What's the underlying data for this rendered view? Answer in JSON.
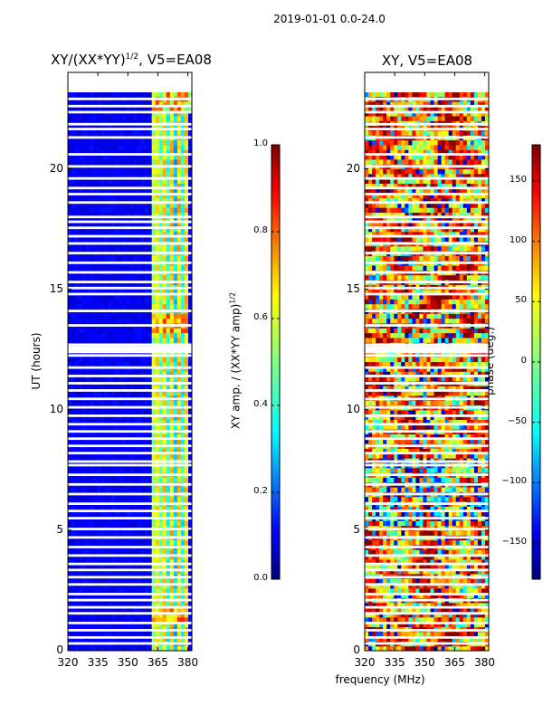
{
  "suptitle": "2019-01-01 0.0-24.0",
  "chart_data": [
    {
      "type": "heatmap",
      "title_main": "XY/(XX*YY)",
      "title_exp": "1/2",
      "title_tail": ", V5=EA08",
      "ylabel": "UT (hours)",
      "xlabel": "",
      "x_ticks": [
        "320",
        "335",
        "350",
        "365",
        "380"
      ],
      "x_tick_values": [
        320,
        335,
        350,
        365,
        380
      ],
      "y_ticks": [
        "0",
        "5",
        "10",
        "15",
        "20"
      ],
      "y_tick_values": [
        0,
        5,
        10,
        15,
        20
      ],
      "xlim": [
        320,
        382
      ],
      "ylim": [
        0,
        24
      ],
      "data_extent_hours": [
        0.0,
        23.2
      ],
      "colormap": "jet",
      "colorbar": {
        "label_main": "XY amp. / (XX*YY amp)",
        "label_exp": "1/2",
        "range": [
          0.0,
          1.0
        ],
        "ticks": [
          "0.0",
          "0.2",
          "0.4",
          "0.6",
          "0.8",
          "1.0"
        ],
        "tick_values": [
          0.0,
          0.2,
          0.4,
          0.6,
          0.8,
          1.0
        ]
      }
    },
    {
      "type": "heatmap",
      "title": "XY, V5=EA08",
      "xlabel": "frequency (MHz)",
      "x_ticks": [
        "320",
        "335",
        "350",
        "365",
        "380"
      ],
      "x_tick_values": [
        320,
        335,
        350,
        365,
        380
      ],
      "y_ticks": [
        "0",
        "5",
        "10",
        "15",
        "20"
      ],
      "y_tick_values": [
        0,
        5,
        10,
        15,
        20
      ],
      "xlim": [
        320,
        382
      ],
      "ylim": [
        0,
        24
      ],
      "data_extent_hours": [
        0.0,
        23.2
      ],
      "colormap": "jet",
      "colorbar": {
        "label": "phase (deg.)",
        "range": [
          -180,
          180
        ],
        "ticks": [
          "−150",
          "−100",
          "−50",
          "0",
          "50",
          "100",
          "150"
        ],
        "tick_values": [
          -150,
          -100,
          -50,
          0,
          50,
          100,
          150
        ]
      }
    }
  ],
  "gap_hours": [
    0.3,
    0.55,
    0.85,
    1.15,
    1.55,
    1.8,
    2.1,
    2.35,
    2.75,
    3.05,
    3.35,
    3.6,
    3.95,
    4.3,
    4.7,
    5.05,
    5.5,
    5.8,
    6.1,
    6.5,
    6.9,
    7.3,
    7.7,
    7.85,
    8.2,
    8.5,
    8.8,
    9.1,
    9.4,
    9.75,
    10.1,
    10.45,
    10.8,
    11.1,
    11.4,
    11.75,
    12.25,
    12.4,
    12.55,
    12.7,
    13.5,
    14.1,
    14.8,
    15.05,
    15.3,
    15.7,
    16.1,
    16.5,
    16.9,
    17.2,
    17.55,
    17.8,
    18.0,
    18.6,
    18.95,
    19.2,
    19.6,
    20.1,
    20.6,
    21.3,
    21.65,
    21.85,
    22.35,
    22.6,
    22.9
  ]
}
